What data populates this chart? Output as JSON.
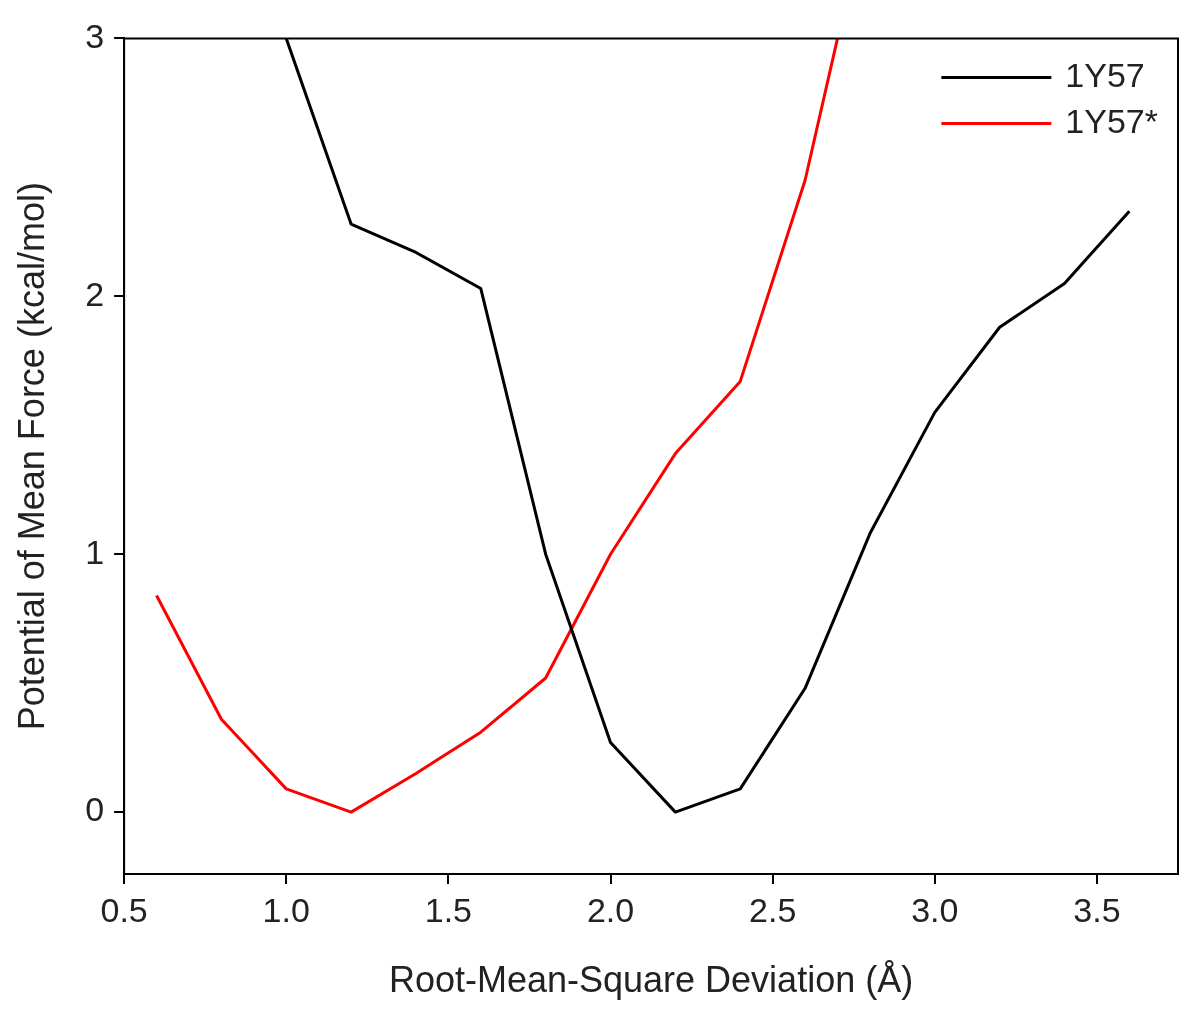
{
  "chart_data": {
    "type": "line",
    "xlabel": "Root-Mean-Square Deviation (Å)",
    "ylabel": "Potential of Mean Force (kcal/mol)",
    "series": [
      {
        "name": "1Y57",
        "color": "#000000",
        "x": [
          1.0,
          1.2,
          1.4,
          1.6,
          1.8,
          2.0,
          2.2,
          2.4,
          2.6,
          2.8,
          3.0,
          3.2,
          3.4,
          3.6
        ],
        "values": [
          3.0,
          2.28,
          2.17,
          2.03,
          1.0,
          0.27,
          0.0,
          0.09,
          0.48,
          1.08,
          1.55,
          1.88,
          2.05,
          2.33
        ]
      },
      {
        "name": "1Y57*",
        "color": "#ff0000",
        "x": [
          0.6,
          0.8,
          1.0,
          1.2,
          1.4,
          1.6,
          1.8,
          2.0,
          2.2,
          2.4,
          2.6,
          2.7
        ],
        "values": [
          0.84,
          0.36,
          0.09,
          0.0,
          0.15,
          0.31,
          0.52,
          1.0,
          1.39,
          1.67,
          2.45,
          3.0
        ]
      }
    ],
    "xlim": [
      0.5,
      3.75
    ],
    "ylim": [
      -0.24,
      3
    ],
    "xticks": [
      0.5,
      {
        "value": 1,
        "label": "1.0"
      },
      1.5,
      {
        "value": 2,
        "label": "2.0"
      },
      2.5,
      {
        "value": 3,
        "label": "3.0"
      },
      3.5
    ],
    "yticks": [
      0,
      1,
      2,
      3
    ],
    "legend": "top right",
    "grid": false
  }
}
